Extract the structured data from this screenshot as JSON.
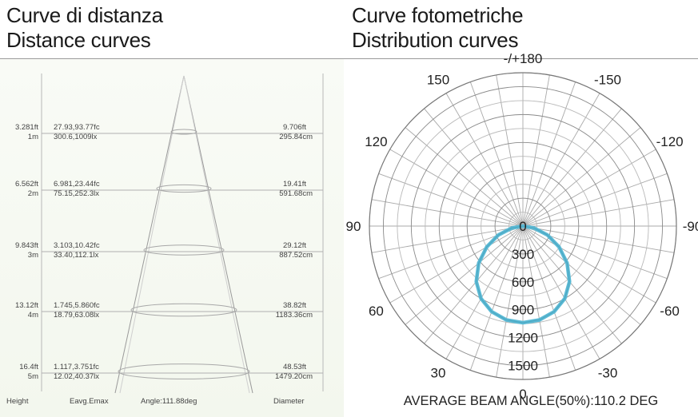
{
  "header": {
    "left_title_it": "Curve di distanza",
    "left_title_en": "Distance curves",
    "right_title_it": "Curve fotometriche",
    "right_title_en": "Distribution  curves"
  },
  "chart_data": [
    {
      "type": "table",
      "name": "distance-curves",
      "columns": [
        "Height",
        "Eavg.Emax",
        "Angle:111.88deg",
        "Diameter"
      ],
      "rows": [
        {
          "height_ft": "3.281ft",
          "height_m": "1m",
          "eavg_emax_fc": "27.93,93.77fc",
          "eavg_emax_lx": "300.6,1009lx",
          "diameter_ft": "9.706ft",
          "diameter_cm": "295.84cm"
        },
        {
          "height_ft": "6.562ft",
          "height_m": "2m",
          "eavg_emax_fc": "6.981,23.44fc",
          "eavg_emax_lx": "75.15,252.3lx",
          "diameter_ft": "19.41ft",
          "diameter_cm": "591.68cm"
        },
        {
          "height_ft": "9.843ft",
          "height_m": "3m",
          "eavg_emax_fc": "3.103,10.42fc",
          "eavg_emax_lx": "33.40,112.1lx",
          "diameter_ft": "29.12ft",
          "diameter_cm": "887.52cm"
        },
        {
          "height_ft": "13.12ft",
          "height_m": "4m",
          "eavg_emax_fc": "1.745,5.860fc",
          "eavg_emax_lx": "18.79,63.08lx",
          "diameter_ft": "38.82ft",
          "diameter_cm": "1183.36cm"
        },
        {
          "height_ft": "16.4ft",
          "height_m": "5m",
          "eavg_emax_fc": "1.117,3.751fc",
          "eavg_emax_lx": "12.02,40.37lx",
          "diameter_ft": "48.53ft",
          "diameter_cm": "1479.20cm"
        }
      ]
    },
    {
      "type": "polar",
      "name": "distribution-curves",
      "angle_labels": [
        {
          "deg": 180,
          "text": "-/+180"
        },
        {
          "deg": -150,
          "text": "-150"
        },
        {
          "deg": 150,
          "text": "150"
        },
        {
          "deg": -120,
          "text": "-120"
        },
        {
          "deg": 120,
          "text": "120"
        },
        {
          "deg": -90,
          "text": "-90"
        },
        {
          "deg": 90,
          "text": "90"
        },
        {
          "deg": -60,
          "text": "-60"
        },
        {
          "deg": 60,
          "text": "60"
        },
        {
          "deg": -30,
          "text": "-30"
        },
        {
          "deg": 30,
          "text": "30"
        },
        {
          "deg": 0,
          "text": "0"
        }
      ],
      "radial_ticks": [
        0,
        300,
        600,
        900,
        1200,
        1500
      ],
      "radial_max": 1650,
      "series": [
        {
          "color": "#5bbad5",
          "points": [
            {
              "deg": 0,
              "value": 1040
            },
            {
              "deg": 10,
              "value": 1025
            },
            {
              "deg": 20,
              "value": 980
            },
            {
              "deg": 30,
              "value": 900
            },
            {
              "deg": 40,
              "value": 780
            },
            {
              "deg": 50,
              "value": 620
            },
            {
              "deg": 60,
              "value": 450
            },
            {
              "deg": 70,
              "value": 280
            },
            {
              "deg": 80,
              "value": 120
            },
            {
              "deg": 90,
              "value": 0
            }
          ]
        }
      ],
      "footer": "AVERAGE BEAM ANGLE(50%):110.2 DEG"
    }
  ]
}
